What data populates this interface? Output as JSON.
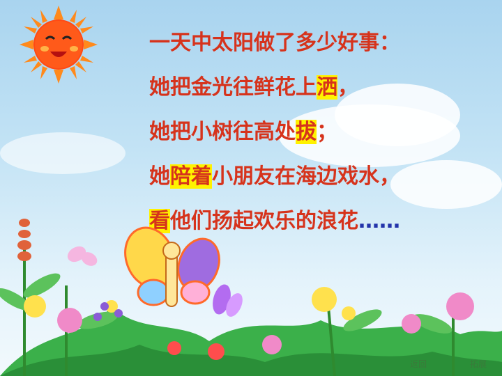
{
  "poem": {
    "line1": "一天中太阳做了多少好事：",
    "line2": {
      "a": "她把金光往鲜花上",
      "hl": "洒",
      "b": "，"
    },
    "line3": {
      "a": "她把小树往高处",
      "hl": "拔",
      "b": "；"
    },
    "line4": {
      "a": "她",
      "hl": "陪着",
      "b": "小朋友在海边戏水，"
    },
    "line5": {
      "hl": "看",
      "a": "他们扬起欢乐的浪花",
      "dots": "……"
    }
  },
  "nav": {
    "back_label": "返回",
    "expand_label": "拓展"
  },
  "colors": {
    "text": "#d6331c",
    "highlight": "#fff200",
    "sun": "#ff5a1a"
  },
  "icons": [
    "sun-icon",
    "butterfly-icon",
    "flower-icon"
  ]
}
